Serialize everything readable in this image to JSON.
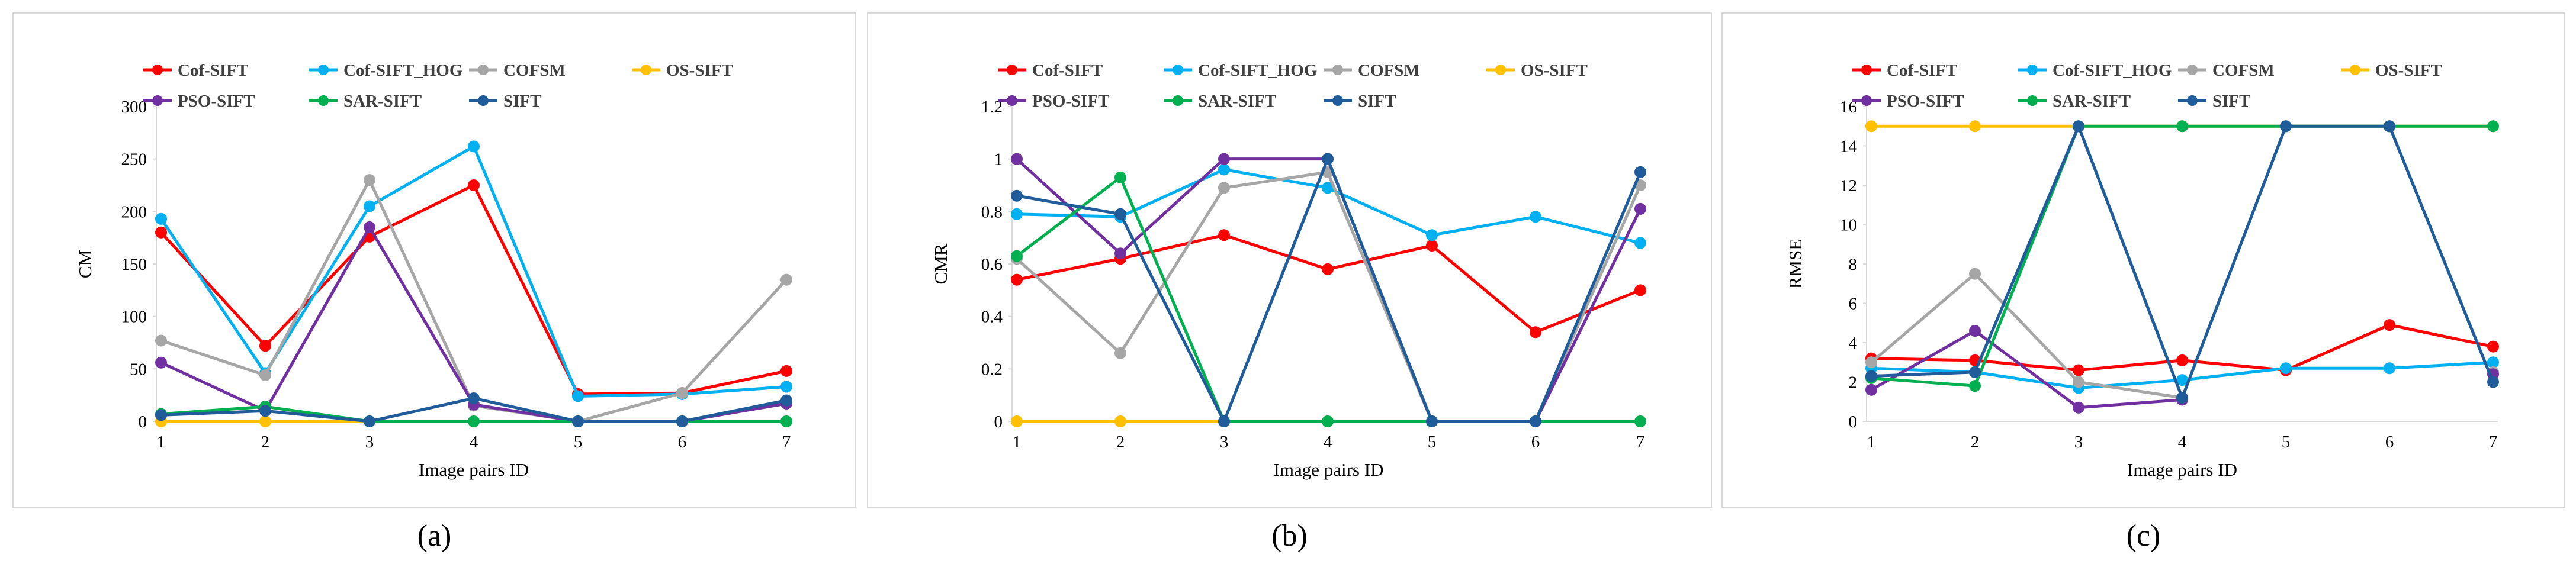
{
  "figure": {
    "colors": {
      "Cof-SIFT": "#ff0000",
      "Cof-SIFT_HOG": "#00b0f0",
      "COFSM": "#a6a6a6",
      "OS-SIFT": "#ffc000",
      "PSO-SIFT": "#7030a0",
      "SAR-SIFT": "#00b050",
      "SIFT": "#1f5c99",
      "axis": "#d9d9d9",
      "frame": "#d9d9d9",
      "text": "#404040"
    }
  },
  "chart_data": [
    {
      "panel_label": "(a)",
      "type": "line",
      "title": "",
      "xlabel": "Image pairs ID",
      "ylabel": "CM",
      "x": [
        1,
        2,
        3,
        4,
        5,
        6,
        7
      ],
      "xticks": [
        "1",
        "2",
        "3",
        "4",
        "5",
        "6",
        "7"
      ],
      "ylim": [
        0,
        300
      ],
      "yticks": [
        0,
        50,
        100,
        150,
        200,
        250,
        300
      ],
      "ytick_labels": [
        "0",
        "50",
        "100",
        "150",
        "200",
        "250",
        "300"
      ],
      "grid": false,
      "legend": "top",
      "series": [
        {
          "name": "Cof-SIFT",
          "values": [
            180,
            72,
            176,
            225,
            26,
            27,
            48
          ]
        },
        {
          "name": "Cof-SIFT_HOG",
          "values": [
            193,
            46,
            205,
            262,
            24,
            26,
            33
          ]
        },
        {
          "name": "COFSM",
          "values": [
            77,
            44,
            230,
            15,
            0,
            27,
            135
          ]
        },
        {
          "name": "OS-SIFT",
          "values": [
            0,
            0,
            0,
            0,
            0,
            0,
            0
          ]
        },
        {
          "name": "PSO-SIFT",
          "values": [
            56,
            10,
            185,
            16,
            0,
            0,
            17
          ]
        },
        {
          "name": "SAR-SIFT",
          "values": [
            7,
            14,
            0,
            0,
            0,
            0,
            0
          ]
        },
        {
          "name": "SIFT",
          "values": [
            6,
            10,
            0,
            22,
            0,
            0,
            20
          ]
        }
      ]
    },
    {
      "panel_label": "(b)",
      "type": "line",
      "title": "",
      "xlabel": "Image pairs ID",
      "ylabel": "CMR",
      "x": [
        1,
        2,
        3,
        4,
        5,
        6,
        7
      ],
      "xticks": [
        "1",
        "2",
        "3",
        "4",
        "5",
        "6",
        "7"
      ],
      "ylim": [
        0,
        1.2
      ],
      "yticks": [
        0,
        0.2,
        0.4,
        0.6,
        0.8,
        1,
        1.2
      ],
      "ytick_labels": [
        "0",
        "0.2",
        "0.4",
        "0.6",
        "0.8",
        "1",
        "1.2"
      ],
      "grid": false,
      "legend": "top",
      "series": [
        {
          "name": "Cof-SIFT",
          "values": [
            0.54,
            0.62,
            0.71,
            0.58,
            0.67,
            0.34,
            0.5
          ]
        },
        {
          "name": "Cof-SIFT_HOG",
          "values": [
            0.79,
            0.78,
            0.96,
            0.89,
            0.71,
            0.78,
            0.68
          ]
        },
        {
          "name": "COFSM",
          "values": [
            0.62,
            0.26,
            0.89,
            0.95,
            0,
            0,
            0.9
          ]
        },
        {
          "name": "OS-SIFT",
          "values": [
            0,
            0,
            0,
            0,
            0,
            0,
            0
          ]
        },
        {
          "name": "PSO-SIFT",
          "values": [
            1.0,
            0.64,
            1.0,
            1.0,
            0,
            0,
            0.81
          ]
        },
        {
          "name": "SAR-SIFT",
          "values": [
            0.63,
            0.93,
            0,
            0,
            0,
            0,
            0
          ]
        },
        {
          "name": "SIFT",
          "values": [
            0.86,
            0.79,
            0,
            1.0,
            0,
            0,
            0.95
          ]
        }
      ]
    },
    {
      "panel_label": "(c)",
      "type": "line",
      "title": "",
      "xlabel": "Image pairs ID",
      "ylabel": "RMSE",
      "x": [
        1,
        2,
        3,
        4,
        5,
        6,
        7
      ],
      "xticks": [
        "1",
        "2",
        "3",
        "4",
        "5",
        "6",
        "7"
      ],
      "ylim": [
        0,
        16
      ],
      "yticks": [
        0,
        2,
        4,
        6,
        8,
        10,
        12,
        14,
        16
      ],
      "ytick_labels": [
        "0",
        "2",
        "4",
        "6",
        "8",
        "10",
        "12",
        "14",
        "16"
      ],
      "grid": false,
      "legend": "top",
      "series": [
        {
          "name": "Cof-SIFT",
          "values": [
            3.2,
            3.1,
            2.6,
            3.1,
            2.6,
            4.9,
            3.8
          ]
        },
        {
          "name": "Cof-SIFT_HOG",
          "values": [
            2.7,
            2.5,
            1.7,
            2.1,
            2.7,
            2.7,
            3.0
          ]
        },
        {
          "name": "COFSM",
          "values": [
            3.0,
            7.5,
            2.0,
            1.2,
            null,
            null,
            2.5
          ]
        },
        {
          "name": "OS-SIFT",
          "values": [
            15,
            15,
            15,
            15,
            15,
            15,
            15
          ]
        },
        {
          "name": "PSO-SIFT",
          "values": [
            1.6,
            4.6,
            0.7,
            1.1,
            null,
            null,
            2.4
          ]
        },
        {
          "name": "SAR-SIFT",
          "values": [
            2.2,
            1.8,
            15,
            15,
            15,
            15,
            15
          ]
        },
        {
          "name": "SIFT",
          "values": [
            2.3,
            2.5,
            15,
            1.2,
            15,
            15,
            2.0
          ]
        }
      ]
    }
  ]
}
